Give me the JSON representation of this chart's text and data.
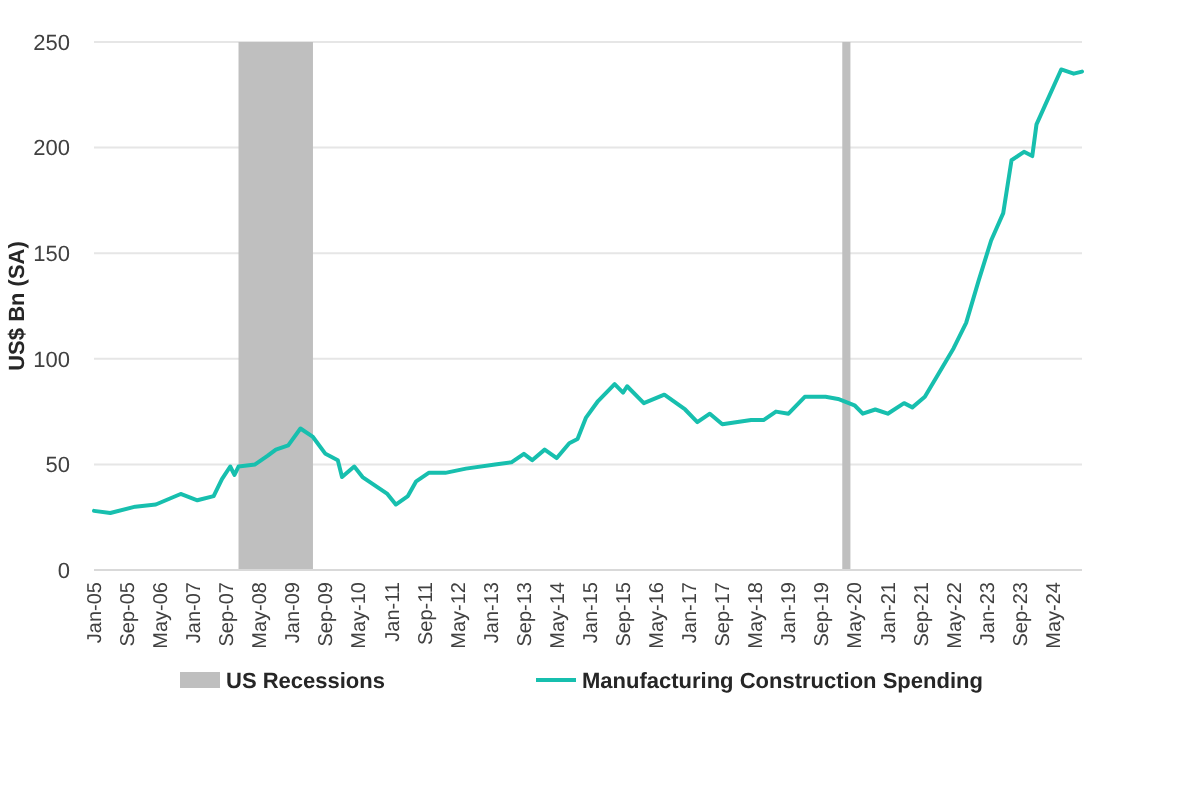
{
  "chart_data": {
    "type": "line",
    "ylabel": "US$ Bn (SA)",
    "x": [
      "2005-01",
      "2005-05",
      "2005-11",
      "2006-04",
      "2006-10",
      "2007-02",
      "2007-06",
      "2007-08",
      "2007-10",
      "2007-11",
      "2007-12",
      "2008-04",
      "2008-07",
      "2008-09",
      "2008-12",
      "2009-03",
      "2009-06",
      "2009-09",
      "2009-12",
      "2010-01",
      "2010-04",
      "2010-06",
      "2010-12",
      "2011-02",
      "2011-05",
      "2011-07",
      "2011-10",
      "2012-02",
      "2012-07",
      "2013-02",
      "2013-06",
      "2013-09",
      "2013-11",
      "2014-02",
      "2014-05",
      "2014-08",
      "2014-10",
      "2014-12",
      "2015-03",
      "2015-07",
      "2015-09",
      "2015-10",
      "2016-02",
      "2016-07",
      "2016-12",
      "2017-03",
      "2017-06",
      "2017-09",
      "2018-04",
      "2018-07",
      "2018-10",
      "2019-01",
      "2019-05",
      "2019-10",
      "2020-01",
      "2020-05",
      "2020-07",
      "2020-10",
      "2021-01",
      "2021-05",
      "2021-07",
      "2021-10",
      "2022-01",
      "2022-05",
      "2022-08",
      "2022-11",
      "2023-02",
      "2023-05",
      "2023-07",
      "2023-10",
      "2023-12",
      "2024-01",
      "2024-04",
      "2024-07",
      "2024-10",
      "2024-12"
    ],
    "series": [
      {
        "name": "Manufacturing Construction Spending",
        "color": "#17bfae",
        "values": [
          28,
          27,
          30,
          31,
          36,
          33,
          35,
          43,
          49,
          45,
          49,
          50,
          54,
          57,
          59,
          67,
          63,
          55,
          52,
          44,
          49,
          44,
          36,
          31,
          35,
          42,
          46,
          46,
          48,
          50,
          51,
          55,
          52,
          57,
          53,
          60,
          62,
          72,
          80,
          88,
          84,
          87,
          79,
          83,
          76,
          70,
          74,
          69,
          71,
          71,
          75,
          74,
          82,
          82,
          81,
          78,
          74,
          76,
          74,
          79,
          77,
          82,
          92,
          105,
          117,
          137,
          156,
          169,
          194,
          198,
          196,
          211,
          224,
          237,
          235,
          236
        ]
      }
    ],
    "bands": [
      {
        "axis": "x",
        "from": "2007-12",
        "to": "2009-06",
        "label": "US Recessions",
        "color": "#bfbfbf"
      },
      {
        "axis": "x",
        "from": "2020-02",
        "to": "2020-04",
        "color": "#bfbfbf"
      }
    ],
    "xlim": [
      "2005-01",
      "2024-12"
    ],
    "xticks": [
      {
        "value": "2005-01",
        "label": "Jan-05"
      },
      {
        "value": "2005-09",
        "label": "Sep-05"
      },
      {
        "value": "2006-05",
        "label": "May-06"
      },
      {
        "value": "2007-01",
        "label": "Jan-07"
      },
      {
        "value": "2007-09",
        "label": "Sep-07"
      },
      {
        "value": "2008-05",
        "label": "May-08"
      },
      {
        "value": "2009-01",
        "label": "Jan-09"
      },
      {
        "value": "2009-09",
        "label": "Sep-09"
      },
      {
        "value": "2010-05",
        "label": "May-10"
      },
      {
        "value": "2011-01",
        "label": "Jan-11"
      },
      {
        "value": "2011-09",
        "label": "Sep-11"
      },
      {
        "value": "2012-05",
        "label": "May-12"
      },
      {
        "value": "2013-01",
        "label": "Jan-13"
      },
      {
        "value": "2013-09",
        "label": "Sep-13"
      },
      {
        "value": "2014-05",
        "label": "May-14"
      },
      {
        "value": "2015-01",
        "label": "Jan-15"
      },
      {
        "value": "2015-09",
        "label": "Sep-15"
      },
      {
        "value": "2016-05",
        "label": "May-16"
      },
      {
        "value": "2017-01",
        "label": "Jan-17"
      },
      {
        "value": "2017-09",
        "label": "Sep-17"
      },
      {
        "value": "2018-05",
        "label": "May-18"
      },
      {
        "value": "2019-01",
        "label": "Jan-19"
      },
      {
        "value": "2019-09",
        "label": "Sep-19"
      },
      {
        "value": "2020-05",
        "label": "May-20"
      },
      {
        "value": "2021-01",
        "label": "Jan-21"
      },
      {
        "value": "2021-09",
        "label": "Sep-21"
      },
      {
        "value": "2022-05",
        "label": "May-22"
      },
      {
        "value": "2023-01",
        "label": "Jan-23"
      },
      {
        "value": "2023-09",
        "label": "Sep-23"
      },
      {
        "value": "2024-05",
        "label": "May-24"
      }
    ],
    "ylim": [
      0,
      250
    ],
    "yticks": [
      0,
      50,
      100,
      150,
      200,
      250
    ],
    "grid": "y",
    "legend": "bottom",
    "marker": "none",
    "line_style": "solid"
  }
}
